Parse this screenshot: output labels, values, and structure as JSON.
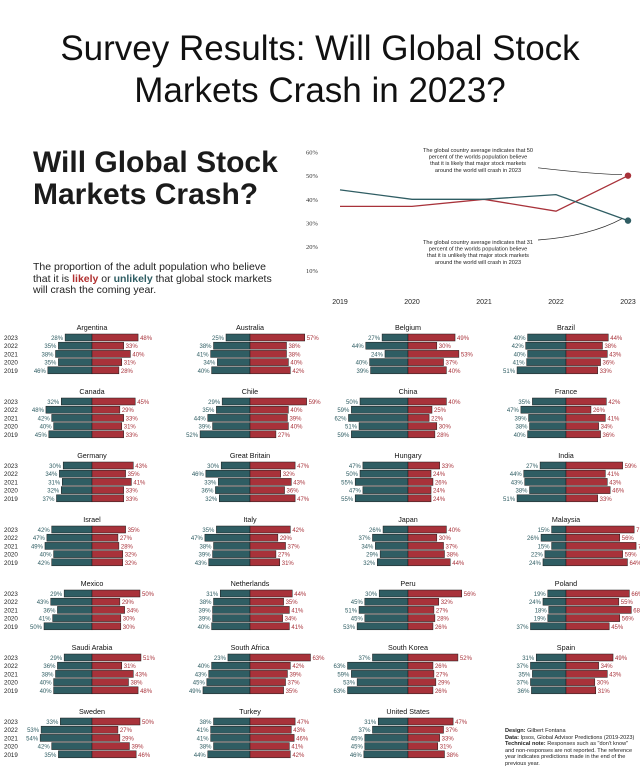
{
  "page_title": "Survey Results: Will Global Stock Markets Crash in 2023?",
  "heading": "Will Global Stock Markets Crash?",
  "lede": {
    "part1": "The proportion of the adult population who believe that it is ",
    "likely": "likely",
    "part2": " or ",
    "unlikely": "unlikely",
    "part3": " that global stock markets will crash the coming year."
  },
  "annotations": {
    "top": "The global country average indicates that 50 percent of the worlds population believe that it is likely that major stock markets around the world will crash in 2023",
    "bottom": "The global country average indicates that 31 percent of the worlds population believe that it is unlikely that major stock markets around the world will crash in 2023"
  },
  "credits": {
    "design_label": "Design:",
    "design": "Gilbert Fontana",
    "data_label": "Data:",
    "data": "Ipsos, Global Advisor Predictions (2019-2023)",
    "note_label": "Technical note:",
    "note": "Responses such as \"don't know\" and non-responses are not reported. The reference year indicates predictions made in the end of the previous year."
  },
  "colors": {
    "likely": "#a8323a",
    "unlikely": "#2f5d63",
    "bar_outline": "#1a1a1a"
  },
  "chart_data": [
    {
      "type": "line",
      "title": "Global country average",
      "x": [
        "2019",
        "2020",
        "2021",
        "2022",
        "2023"
      ],
      "ylim": [
        0,
        60
      ],
      "yticks": [
        "10%",
        "20%",
        "30%",
        "40%",
        "50%",
        "60%"
      ],
      "series": [
        {
          "name": "Likely",
          "values": [
            37,
            37,
            40,
            35,
            50
          ]
        },
        {
          "name": "Unlikely",
          "values": [
            44,
            40,
            40,
            42,
            31
          ]
        }
      ]
    },
    {
      "type": "bar",
      "orientation": "diverging-horizontal",
      "years": [
        "2023",
        "2022",
        "2021",
        "2020",
        "2019"
      ],
      "scale_max": 75,
      "countries": [
        {
          "name": "Argentina",
          "unlikely": [
            28,
            35,
            38,
            35,
            46
          ],
          "likely": [
            48,
            33,
            40,
            31,
            28
          ]
        },
        {
          "name": "Australia",
          "unlikely": [
            25,
            38,
            41,
            34,
            40
          ],
          "likely": [
            57,
            38,
            38,
            40,
            42
          ]
        },
        {
          "name": "Belgium",
          "unlikely": [
            27,
            44,
            24,
            40,
            39
          ],
          "likely": [
            49,
            30,
            53,
            37,
            40
          ]
        },
        {
          "name": "Brazil",
          "unlikely": [
            40,
            42,
            40,
            41,
            51
          ],
          "likely": [
            44,
            38,
            43,
            36,
            33
          ]
        },
        {
          "name": "Canada",
          "unlikely": [
            32,
            48,
            42,
            40,
            45
          ],
          "likely": [
            45,
            29,
            33,
            31,
            33
          ]
        },
        {
          "name": "Chile",
          "unlikely": [
            29,
            35,
            44,
            39,
            52
          ],
          "likely": [
            59,
            40,
            39,
            40,
            27
          ]
        },
        {
          "name": "China",
          "unlikely": [
            50,
            59,
            62,
            51,
            59
          ],
          "likely": [
            40,
            25,
            22,
            30,
            28
          ]
        },
        {
          "name": "France",
          "unlikely": [
            35,
            47,
            39,
            38,
            40
          ],
          "likely": [
            42,
            26,
            41,
            34,
            36
          ]
        },
        {
          "name": "Germany",
          "unlikely": [
            30,
            34,
            31,
            32,
            37
          ],
          "likely": [
            43,
            35,
            41,
            33,
            33
          ]
        },
        {
          "name": "Great Britain",
          "unlikely": [
            30,
            46,
            33,
            36,
            32
          ],
          "likely": [
            47,
            32,
            43,
            36,
            47
          ]
        },
        {
          "name": "Hungary",
          "unlikely": [
            47,
            50,
            55,
            47,
            55
          ],
          "likely": [
            33,
            24,
            26,
            24,
            24
          ]
        },
        {
          "name": "India",
          "unlikely": [
            27,
            44,
            43,
            38,
            51
          ],
          "likely": [
            59,
            41,
            43,
            46,
            33
          ]
        },
        {
          "name": "Israel",
          "unlikely": [
            42,
            47,
            49,
            40,
            42
          ],
          "likely": [
            35,
            27,
            28,
            32,
            32
          ]
        },
        {
          "name": "Italy",
          "unlikely": [
            35,
            47,
            38,
            39,
            43
          ],
          "likely": [
            42,
            29,
            37,
            27,
            31
          ]
        },
        {
          "name": "Japan",
          "unlikely": [
            26,
            37,
            34,
            29,
            32
          ],
          "likely": [
            40,
            30,
            37,
            38,
            44
          ]
        },
        {
          "name": "Malaysia",
          "unlikely": [
            15,
            26,
            15,
            22,
            24
          ],
          "likely": [
            71,
            56,
            73,
            59,
            64
          ]
        },
        {
          "name": "Mexico",
          "unlikely": [
            29,
            43,
            36,
            41,
            50
          ],
          "likely": [
            50,
            29,
            34,
            30,
            30
          ]
        },
        {
          "name": "Netherlands",
          "unlikely": [
            31,
            38,
            39,
            39,
            40
          ],
          "likely": [
            44,
            35,
            41,
            34,
            41
          ]
        },
        {
          "name": "Peru",
          "unlikely": [
            30,
            45,
            51,
            45,
            53
          ],
          "likely": [
            56,
            32,
            27,
            28,
            26
          ]
        },
        {
          "name": "Poland",
          "unlikely": [
            19,
            24,
            18,
            19,
            37
          ],
          "likely": [
            66,
            55,
            68,
            56,
            45
          ]
        },
        {
          "name": "Saudi Arabia",
          "unlikely": [
            29,
            36,
            38,
            40,
            40
          ],
          "likely": [
            51,
            31,
            43,
            38,
            48
          ]
        },
        {
          "name": "South Africa",
          "unlikely": [
            23,
            40,
            43,
            45,
            49
          ],
          "likely": [
            63,
            42,
            39,
            37,
            35
          ]
        },
        {
          "name": "South Korea",
          "unlikely": [
            37,
            63,
            59,
            53,
            63
          ],
          "likely": [
            52,
            26,
            27,
            29,
            26
          ]
        },
        {
          "name": "Spain",
          "unlikely": [
            31,
            37,
            35,
            37,
            36
          ],
          "likely": [
            49,
            34,
            43,
            30,
            31
          ]
        },
        {
          "name": "Sweden",
          "unlikely": [
            33,
            53,
            54,
            42,
            35
          ],
          "likely": [
            50,
            27,
            29,
            39,
            46
          ]
        },
        {
          "name": "Turkey",
          "unlikely": [
            38,
            41,
            41,
            38,
            44
          ],
          "likely": [
            47,
            43,
            46,
            41,
            42
          ]
        },
        {
          "name": "United States",
          "unlikely": [
            31,
            37,
            45,
            45,
            46
          ],
          "likely": [
            47,
            37,
            33,
            31,
            38
          ]
        }
      ]
    }
  ]
}
